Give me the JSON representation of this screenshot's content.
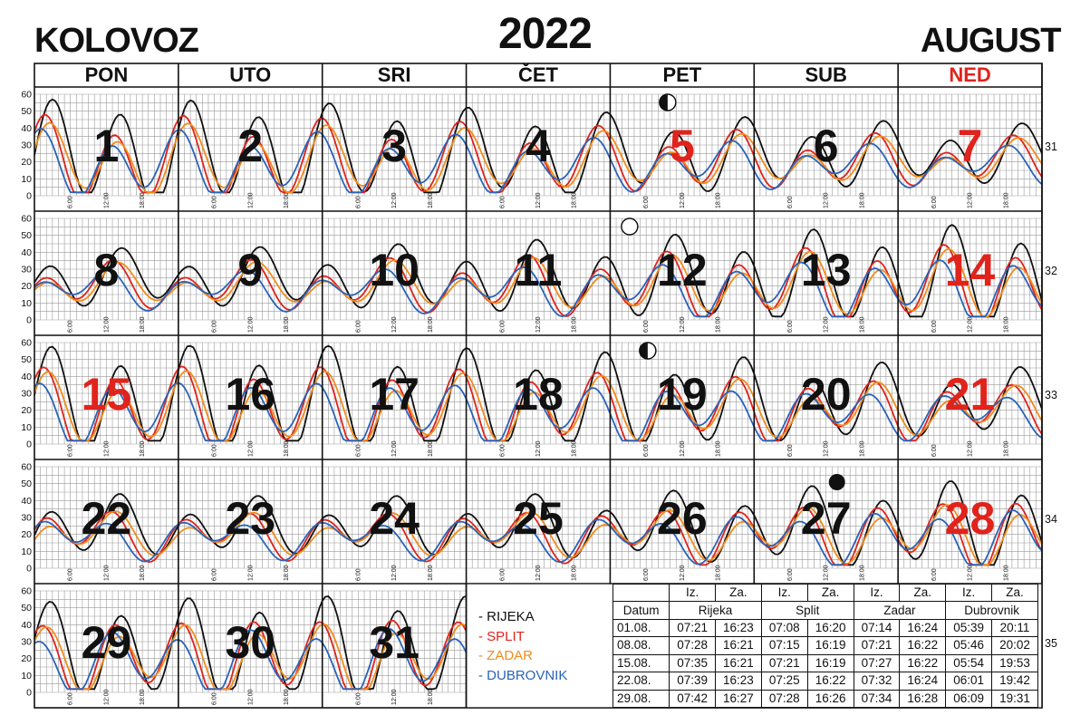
{
  "header": {
    "left": "KOLOVOZ",
    "year": "2022",
    "right": "AUGUST"
  },
  "colors": {
    "grid": "#9a9a9a",
    "border": "#111111",
    "sunday_red": "#e0231c",
    "rijeka": "#111111",
    "split": "#e0231c",
    "zadar": "#f28b1a",
    "dubrovnik": "#2a63b8"
  },
  "weekdays": [
    {
      "label": "PON",
      "sunday": false
    },
    {
      "label": "UTO",
      "sunday": false
    },
    {
      "label": "SRI",
      "sunday": false
    },
    {
      "label": "ČET",
      "sunday": false
    },
    {
      "label": "PET",
      "sunday": false
    },
    {
      "label": "SUB",
      "sunday": false
    },
    {
      "label": "NED",
      "sunday": true
    }
  ],
  "chart_data": {
    "type": "line",
    "title": "2022",
    "ylabel": "",
    "ylim": [
      0,
      60
    ],
    "yticks": [
      "0",
      "10",
      "20",
      "30",
      "40",
      "50",
      "60"
    ],
    "x_tick_labels": [
      "6:00",
      "12:00",
      "18:00"
    ],
    "series": [
      {
        "name": "RIJEKA",
        "color": "#111111"
      },
      {
        "name": "SPLIT",
        "color": "#e0231c"
      },
      {
        "name": "ZADAR",
        "color": "#f28b1a"
      },
      {
        "name": "DUBROVNIK",
        "color": "#2a63b8"
      }
    ],
    "weeks": [
      {
        "number": "31",
        "days": [
          {
            "day": "1",
            "col": 0,
            "red": false
          },
          {
            "day": "2",
            "col": 1,
            "red": false
          },
          {
            "day": "3",
            "col": 2,
            "red": false
          },
          {
            "day": "4",
            "col": 3,
            "red": false
          },
          {
            "day": "5",
            "col": 4,
            "red": true
          },
          {
            "day": "6",
            "col": 5,
            "red": false
          },
          {
            "day": "7",
            "col": 6,
            "red": true
          }
        ]
      },
      {
        "number": "32",
        "days": [
          {
            "day": "8",
            "col": 0,
            "red": false
          },
          {
            "day": "9",
            "col": 1,
            "red": false
          },
          {
            "day": "10",
            "col": 2,
            "red": false
          },
          {
            "day": "11",
            "col": 3,
            "red": false
          },
          {
            "day": "12",
            "col": 4,
            "red": false
          },
          {
            "day": "13",
            "col": 5,
            "red": false
          },
          {
            "day": "14",
            "col": 6,
            "red": true
          }
        ]
      },
      {
        "number": "33",
        "days": [
          {
            "day": "15",
            "col": 0,
            "red": true
          },
          {
            "day": "16",
            "col": 1,
            "red": false
          },
          {
            "day": "17",
            "col": 2,
            "red": false
          },
          {
            "day": "18",
            "col": 3,
            "red": false
          },
          {
            "day": "19",
            "col": 4,
            "red": false
          },
          {
            "day": "20",
            "col": 5,
            "red": false
          },
          {
            "day": "21",
            "col": 6,
            "red": true
          }
        ]
      },
      {
        "number": "34",
        "days": [
          {
            "day": "22",
            "col": 0,
            "red": false
          },
          {
            "day": "23",
            "col": 1,
            "red": false
          },
          {
            "day": "24",
            "col": 2,
            "red": false
          },
          {
            "day": "25",
            "col": 3,
            "red": false
          },
          {
            "day": "26",
            "col": 4,
            "red": false
          },
          {
            "day": "27",
            "col": 5,
            "red": false
          },
          {
            "day": "28",
            "col": 6,
            "red": true
          }
        ]
      },
      {
        "number": "35",
        "days": [
          {
            "day": "29",
            "col": 0,
            "red": false
          },
          {
            "day": "30",
            "col": 1,
            "red": false
          },
          {
            "day": "31",
            "col": 2,
            "red": false
          }
        ]
      }
    ],
    "moon_phases": [
      {
        "day": "5",
        "phase": "first-quarter"
      },
      {
        "day": "12",
        "phase": "full"
      },
      {
        "day": "19",
        "phase": "last-quarter"
      },
      {
        "day": "27",
        "phase": "new"
      }
    ]
  },
  "legend": [
    {
      "label": "- RIJEKA",
      "color": "#111111"
    },
    {
      "label": "- SPLIT",
      "color": "#e0231c"
    },
    {
      "label": "- ZADAR",
      "color": "#f28b1a"
    },
    {
      "label": "- DUBROVNIK",
      "color": "#2a63b8"
    }
  ],
  "sun_table": {
    "iz": "Iz.",
    "za": "Za.",
    "datum": "Datum",
    "cities": [
      "Rijeka",
      "Split",
      "Zadar",
      "Dubrovnik"
    ],
    "rows": [
      [
        "01.08.",
        "07:21",
        "16:23",
        "07:08",
        "16:20",
        "07:14",
        "16:24",
        "05:39",
        "20:11"
      ],
      [
        "08.08.",
        "07:28",
        "16:21",
        "07:15",
        "16:19",
        "07:21",
        "16:22",
        "05:46",
        "20:02"
      ],
      [
        "15.08.",
        "07:35",
        "16:21",
        "07:21",
        "16:19",
        "07:27",
        "16:22",
        "05:54",
        "19:53"
      ],
      [
        "22.08.",
        "07:39",
        "16:23",
        "07:25",
        "16:22",
        "07:32",
        "16:24",
        "06:01",
        "19:42"
      ],
      [
        "29.08.",
        "07:42",
        "16:27",
        "07:28",
        "16:26",
        "07:34",
        "16:28",
        "06:09",
        "19:31"
      ]
    ]
  }
}
